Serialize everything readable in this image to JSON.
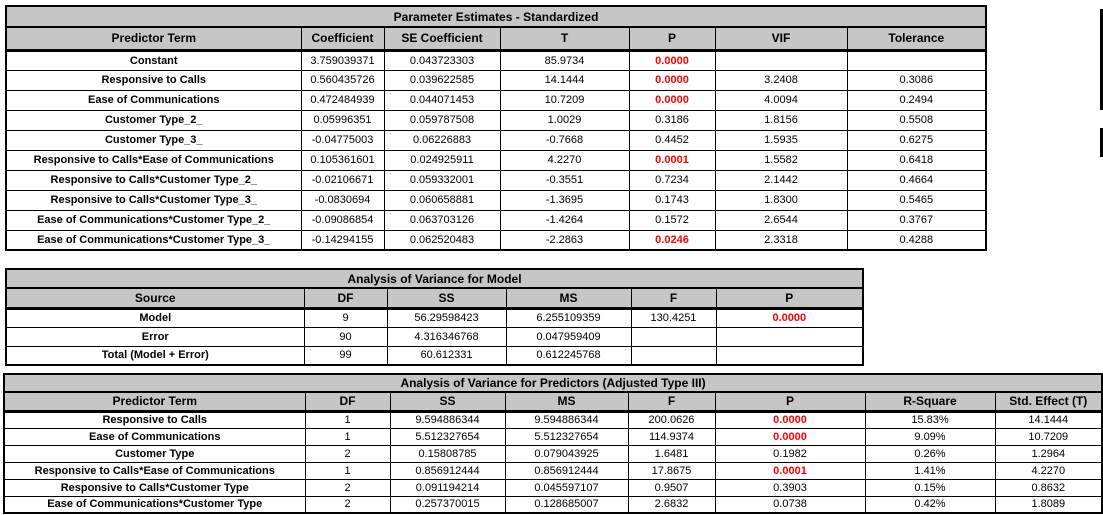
{
  "colors": {
    "header_bg": "#c6c6c6",
    "border": "#000000",
    "significant_p": "#ff0000",
    "text": "#000000"
  },
  "tables": [
    {
      "title": "Parameter Estimates - Standardized",
      "columns": [
        "Predictor Term",
        "Coefficient",
        "SE Coefficient",
        "T",
        "P",
        "VIF",
        "Tolerance"
      ],
      "p_col": 4,
      "sig_rows": [
        0,
        1,
        2,
        5,
        9
      ],
      "rows": [
        [
          "Constant",
          "3.759039371",
          "0.043723303",
          "85.9734",
          "0.0000",
          "",
          ""
        ],
        [
          "Responsive to Calls",
          "0.560435726",
          "0.039622585",
          "14.1444",
          "0.0000",
          "3.2408",
          "0.3086"
        ],
        [
          "Ease of Communications",
          "0.472484939",
          "0.044071453",
          "10.7209",
          "0.0000",
          "4.0094",
          "0.2494"
        ],
        [
          "Customer Type_2_",
          "0.05996351",
          "0.059787508",
          "1.0029",
          "0.3186",
          "1.8156",
          "0.5508"
        ],
        [
          "Customer Type_3_",
          "-0.04775003",
          "0.06226883",
          "-0.7668",
          "0.4452",
          "1.5935",
          "0.6275"
        ],
        [
          "Responsive to Calls*Ease of Communications",
          "0.105361601",
          "0.024925911",
          "4.2270",
          "0.0001",
          "1.5582",
          "0.6418"
        ],
        [
          "Responsive to Calls*Customer Type_2_",
          "-0.02106671",
          "0.059332001",
          "-0.3551",
          "0.7234",
          "2.1442",
          "0.4664"
        ],
        [
          "Responsive to Calls*Customer Type_3_",
          "-0.0830694",
          "0.060658881",
          "-1.3695",
          "0.1743",
          "1.8300",
          "0.5465"
        ],
        [
          "Ease of Communications*Customer Type_2_",
          "-0.09086854",
          "0.063703126",
          "-1.4264",
          "0.1572",
          "2.6544",
          "0.3767"
        ],
        [
          "Ease of Communications*Customer Type_3_",
          "-0.14294155",
          "0.062520483",
          "-2.2863",
          "0.0246",
          "2.3318",
          "0.4288"
        ]
      ]
    },
    {
      "title": "Analysis of Variance for Model",
      "columns": [
        "Source",
        "DF",
        "SS",
        "MS",
        "F",
        "P"
      ],
      "p_col": 5,
      "sig_rows": [
        0
      ],
      "rows": [
        [
          "Model",
          "9",
          "56.29598423",
          "6.255109359",
          "130.4251",
          "0.0000"
        ],
        [
          "Error",
          "90",
          "4.316346768",
          "0.047959409",
          "",
          ""
        ],
        [
          "Total (Model + Error)",
          "99",
          "60.612331",
          "0.612245768",
          "",
          ""
        ]
      ]
    },
    {
      "title": "Analysis of Variance for Predictors (Adjusted Type III)",
      "columns": [
        "Predictor Term",
        "DF",
        "SS",
        "MS",
        "F",
        "P",
        "R-Square",
        "Std. Effect (T)"
      ],
      "p_col": 5,
      "sig_rows": [
        0,
        1,
        3
      ],
      "rows": [
        [
          "Responsive to Calls",
          "1",
          "9.594886344",
          "9.594886344",
          "200.0626",
          "0.0000",
          "15.83%",
          "14.1444"
        ],
        [
          "Ease of Communications",
          "1",
          "5.512327654",
          "5.512327654",
          "114.9374",
          "0.0000",
          "9.09%",
          "10.7209"
        ],
        [
          "Customer Type",
          "2",
          "0.15808785",
          "0.079043925",
          "1.6481",
          "0.1982",
          "0.26%",
          "1.2964"
        ],
        [
          "Responsive to Calls*Ease of Communications",
          "1",
          "0.856912444",
          "0.856912444",
          "17.8675",
          "0.0001",
          "1.41%",
          "4.2270"
        ],
        [
          "Responsive to Calls*Customer Type",
          "2",
          "0.091194214",
          "0.045597107",
          "0.9507",
          "0.3903",
          "0.15%",
          "0.8632"
        ],
        [
          "Ease of Communications*Customer Type",
          "2",
          "0.257370015",
          "0.128685007",
          "2.6832",
          "0.0738",
          "0.42%",
          "1.8089"
        ]
      ]
    }
  ]
}
